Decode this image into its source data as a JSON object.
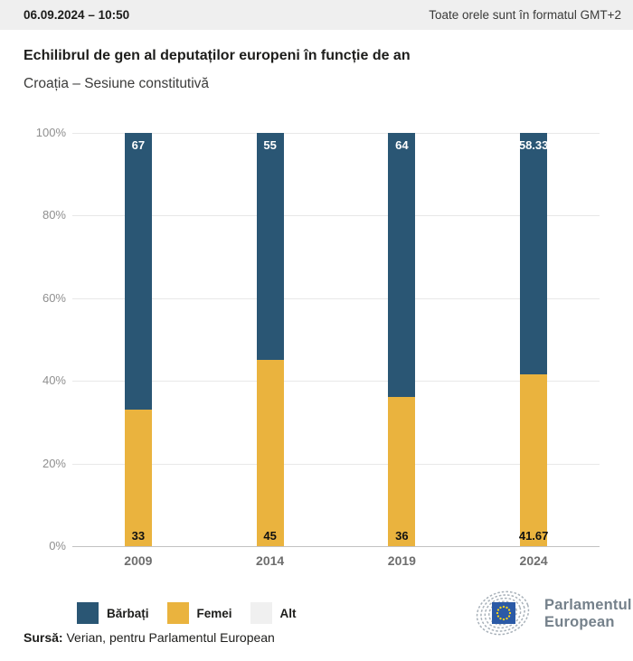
{
  "header": {
    "datetime": "06.09.2024 – 10:50",
    "timezone_note": "Toate orele sunt în formatul GMT+2"
  },
  "title": "Echilibrul de gen al deputaților europeni în funcție de an",
  "subtitle": "Croația – Sesiune constitutivă",
  "chart_data": {
    "type": "bar",
    "stacked": true,
    "title": "Echilibrul de gen al deputaților europeni în funcție de an",
    "subtitle": "Croația – Sesiune constitutivă",
    "categories": [
      "2009",
      "2014",
      "2019",
      "2024"
    ],
    "series": [
      {
        "name": "Bărbați",
        "color": "#2a5674",
        "label_color": "#ffffff",
        "values": [
          67,
          55,
          64,
          58.33
        ]
      },
      {
        "name": "Femei",
        "color": "#eab33e",
        "label_color": "#111111",
        "values": [
          33,
          45,
          36,
          41.67
        ]
      },
      {
        "name": "Alt",
        "color": "#f0f0f0",
        "label_color": "#111111",
        "values": [
          0,
          0,
          0,
          0
        ]
      }
    ],
    "y_ticks": [
      "0%",
      "20%",
      "40%",
      "60%",
      "80%",
      "100%"
    ],
    "ylim": [
      0,
      100
    ],
    "grid": true,
    "legend_position": "bottom"
  },
  "legend": {
    "items": [
      {
        "label": "Bărbați",
        "color": "#2a5674"
      },
      {
        "label": "Femei",
        "color": "#eab33e"
      },
      {
        "label": "Alt",
        "color": "#f0f0f0"
      }
    ]
  },
  "source": {
    "label": "Sursă:",
    "text": " Verian, pentru Parlamentul European"
  },
  "logo": {
    "line1": "Parlamentul",
    "line2": "European",
    "flag_color": "#2b5aa6",
    "star_color": "#ffd617"
  }
}
